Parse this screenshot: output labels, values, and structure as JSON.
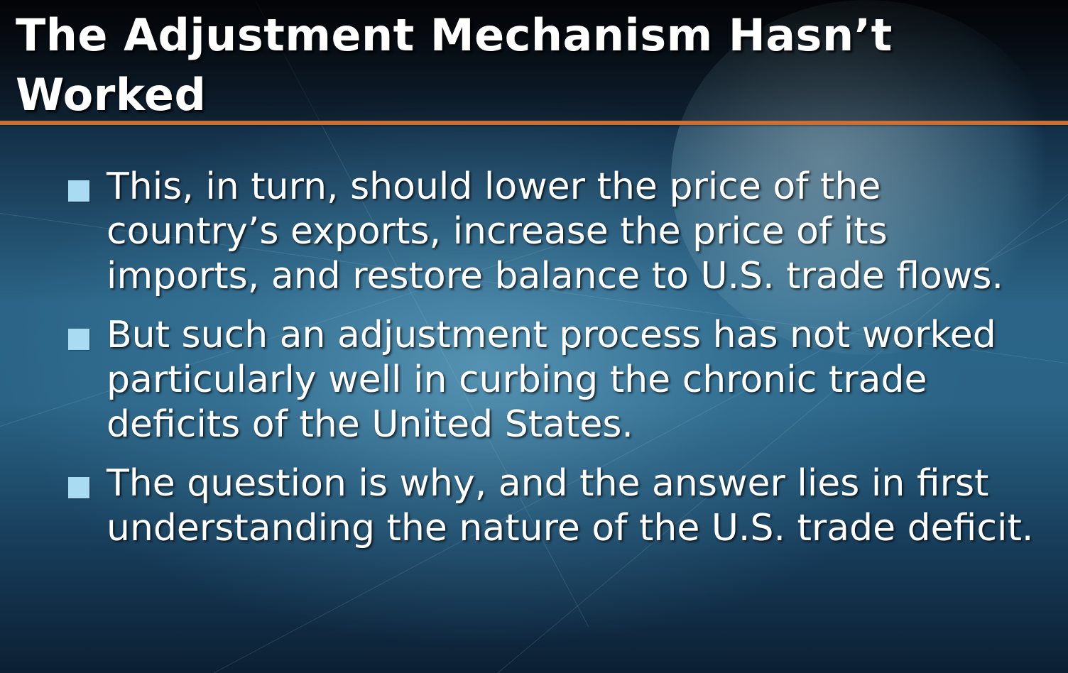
{
  "slide": {
    "title": "The Adjustment Mechanism Hasn’t Worked",
    "bullets": [
      {
        "text": "This, in turn, should lower the price of the country’s exports, increase the price of its imports, and restore balance to U.S. trade flows."
      },
      {
        "text": "But such an adjustment process has not worked particularly well in curbing the chronic trade deficits of the United States."
      },
      {
        "text": "The question is why, and the answer lies in first understanding the nature of the U.S. trade deficit."
      }
    ]
  },
  "colors": {
    "title_text": "#ffffff",
    "rule_accent": "#c86f35",
    "bullet_marker": "#a9dcf2",
    "body_text": "#ffffff"
  },
  "icons": {
    "bullet": "square-bullet-icon",
    "background": "globe-icon"
  }
}
